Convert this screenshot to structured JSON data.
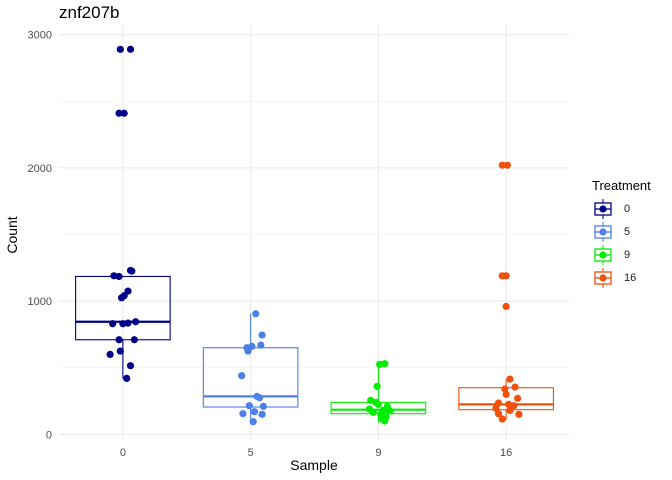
{
  "chart_data": {
    "type": "box",
    "title": "znf207b",
    "xlabel": "Sample",
    "ylabel": "Count",
    "categories": [
      "0",
      "5",
      "9",
      "16"
    ],
    "ylim": [
      -50,
      3080
    ],
    "yticks": [
      0,
      1000,
      2000,
      3000
    ],
    "grid": true,
    "legend": {
      "title": "Treatment",
      "placement": "right"
    },
    "series": [
      {
        "name": "0",
        "color": "#00008B",
        "box": {
          "q1": 710,
          "median": 845,
          "q3": 1185,
          "lower": 420,
          "upper": 1185
        },
        "points": [
          {
            "dx": -0.02,
            "y": 2890
          },
          {
            "dx": 0.06,
            "y": 2890
          },
          {
            "dx": -0.03,
            "y": 2410
          },
          {
            "dx": 0.01,
            "y": 2410
          },
          {
            "dx": -0.07,
            "y": 1190
          },
          {
            "dx": -0.03,
            "y": 1185
          },
          {
            "dx": 0.06,
            "y": 1230
          },
          {
            "dx": 0.07,
            "y": 1225
          },
          {
            "dx": 0.04,
            "y": 1075
          },
          {
            "dx": 0.01,
            "y": 1040
          },
          {
            "dx": -0.01,
            "y": 1025
          },
          {
            "dx": -0.08,
            "y": 830
          },
          {
            "dx": 0.04,
            "y": 835
          },
          {
            "dx": 0.1,
            "y": 845
          },
          {
            "dx": 0.0,
            "y": 830
          },
          {
            "dx": -0.03,
            "y": 710
          },
          {
            "dx": 0.09,
            "y": 710
          },
          {
            "dx": -0.02,
            "y": 625
          },
          {
            "dx": -0.1,
            "y": 600
          },
          {
            "dx": 0.06,
            "y": 515
          },
          {
            "dx": 0.03,
            "y": 420
          }
        ]
      },
      {
        "name": "5",
        "color": "#4C7FE8",
        "box": {
          "q1": 205,
          "median": 285,
          "q3": 650,
          "lower": 95,
          "upper": 905
        },
        "points": [
          {
            "dx": 0.04,
            "y": 905
          },
          {
            "dx": 0.09,
            "y": 745
          },
          {
            "dx": -0.03,
            "y": 650
          },
          {
            "dx": 0.01,
            "y": 660
          },
          {
            "dx": 0.08,
            "y": 670
          },
          {
            "dx": -0.02,
            "y": 625
          },
          {
            "dx": -0.07,
            "y": 440
          },
          {
            "dx": 0.05,
            "y": 285
          },
          {
            "dx": 0.07,
            "y": 275
          },
          {
            "dx": -0.01,
            "y": 215
          },
          {
            "dx": 0.1,
            "y": 210
          },
          {
            "dx": 0.03,
            "y": 170
          },
          {
            "dx": -0.06,
            "y": 155
          },
          {
            "dx": 0.09,
            "y": 150
          },
          {
            "dx": 0.02,
            "y": 95
          }
        ]
      },
      {
        "name": "9",
        "color": "#00EE00",
        "box": {
          "q1": 155,
          "median": 185,
          "q3": 240,
          "lower": 90,
          "upper": 530
        },
        "points": [
          {
            "dx": 0.01,
            "y": 525
          },
          {
            "dx": 0.05,
            "y": 530
          },
          {
            "dx": -0.01,
            "y": 360
          },
          {
            "dx": -0.06,
            "y": 255
          },
          {
            "dx": -0.02,
            "y": 240
          },
          {
            "dx": 0.0,
            "y": 225
          },
          {
            "dx": 0.07,
            "y": 210
          },
          {
            "dx": -0.07,
            "y": 190
          },
          {
            "dx": 0.04,
            "y": 180
          },
          {
            "dx": 0.09,
            "y": 175
          },
          {
            "dx": -0.04,
            "y": 165
          },
          {
            "dx": 0.02,
            "y": 150
          },
          {
            "dx": 0.06,
            "y": 130
          },
          {
            "dx": 0.03,
            "y": 115
          },
          {
            "dx": 0.05,
            "y": 100
          }
        ]
      },
      {
        "name": "16",
        "color": "#F0500A",
        "box": {
          "q1": 185,
          "median": 225,
          "q3": 350,
          "lower": 110,
          "upper": 415
        },
        "points": [
          {
            "dx": -0.03,
            "y": 2020
          },
          {
            "dx": 0.01,
            "y": 2020
          },
          {
            "dx": -0.03,
            "y": 1190
          },
          {
            "dx": 0.0,
            "y": 1190
          },
          {
            "dx": 0.0,
            "y": 960
          },
          {
            "dx": 0.03,
            "y": 415
          },
          {
            "dx": 0.07,
            "y": 355
          },
          {
            "dx": -0.01,
            "y": 340
          },
          {
            "dx": 0.0,
            "y": 300
          },
          {
            "dx": 0.09,
            "y": 270
          },
          {
            "dx": -0.06,
            "y": 235
          },
          {
            "dx": 0.02,
            "y": 225
          },
          {
            "dx": 0.06,
            "y": 215
          },
          {
            "dx": -0.08,
            "y": 195
          },
          {
            "dx": 0.03,
            "y": 180
          },
          {
            "dx": -0.06,
            "y": 155
          },
          {
            "dx": 0.1,
            "y": 150
          },
          {
            "dx": -0.03,
            "y": 115
          }
        ]
      }
    ]
  }
}
